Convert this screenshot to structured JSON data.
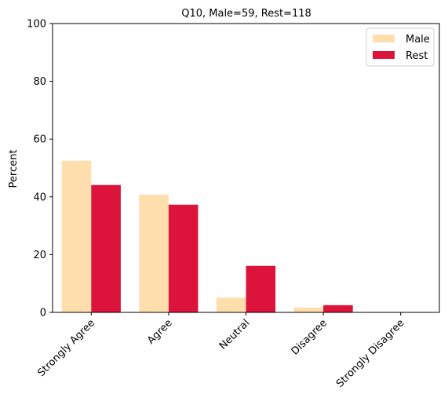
{
  "chart_data": {
    "type": "bar",
    "title": "Q10, Male=59, Rest=118",
    "xlabel": "",
    "ylabel": "Percent",
    "ylim": [
      0,
      100
    ],
    "yticks": [
      0,
      20,
      40,
      60,
      80,
      100
    ],
    "categories": [
      "Strongly Agree",
      "Agree",
      "Neutral",
      "Disagree",
      "Strongly Disagree"
    ],
    "series": [
      {
        "name": "Male",
        "color": "#FFDEAD",
        "values": [
          52.5,
          40.7,
          5.1,
          1.7,
          0.0
        ]
      },
      {
        "name": "Rest",
        "color": "#DC143C",
        "values": [
          44.1,
          37.3,
          16.1,
          2.5,
          0.0
        ]
      }
    ],
    "legend_position": "top-right",
    "grid": false
  }
}
